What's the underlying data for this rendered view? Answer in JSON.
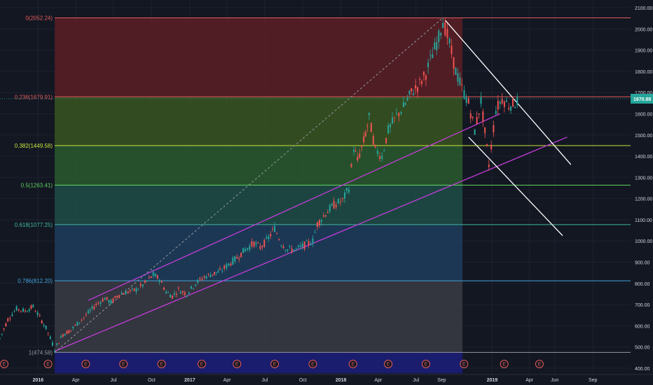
{
  "chart_data": {
    "type": "candlestick",
    "ylim": [
      400,
      2100
    ],
    "y_ticks": [
      400,
      500,
      600,
      700,
      800,
      900,
      1000,
      1100,
      1200,
      1300,
      1400,
      1500,
      1600,
      1700,
      1800,
      1900,
      2000,
      2100
    ],
    "y_tick_labels": [
      "400.00",
      "500.00",
      "600.00",
      "700.00",
      "800.00",
      "900.00",
      "1000.00",
      "1100.00",
      "1200.00",
      "1300.00",
      "1400.00",
      "1500.00",
      "1600.00",
      "1700.00",
      "1800.00",
      "1900.00",
      "2000.00",
      "2100.00"
    ],
    "x_range": [
      "2015-10-01",
      "2019-12-01"
    ],
    "x_ticks": [
      {
        "date": "2016-01-01",
        "label": "2016",
        "bold": true
      },
      {
        "date": "2016-04-01",
        "label": "Apr",
        "bold": false
      },
      {
        "date": "2016-07-01",
        "label": "Jul",
        "bold": false
      },
      {
        "date": "2016-10-01",
        "label": "Oct",
        "bold": false
      },
      {
        "date": "2017-01-01",
        "label": "2017",
        "bold": true
      },
      {
        "date": "2017-04-01",
        "label": "Apr",
        "bold": false
      },
      {
        "date": "2017-07-01",
        "label": "Jul",
        "bold": false
      },
      {
        "date": "2017-10-01",
        "label": "Oct",
        "bold": false
      },
      {
        "date": "2018-01-01",
        "label": "2018",
        "bold": true
      },
      {
        "date": "2018-04-01",
        "label": "Apr",
        "bold": false
      },
      {
        "date": "2018-07-01",
        "label": "Jul",
        "bold": false
      },
      {
        "date": "2018-09-01",
        "label": "Sep",
        "bold": false
      },
      {
        "date": "2019-01-01",
        "label": "2019",
        "bold": true
      },
      {
        "date": "2019-04-01",
        "label": "Apr",
        "bold": false
      },
      {
        "date": "2019-06-01",
        "label": "Jun",
        "bold": false
      },
      {
        "date": "2019-09-01",
        "label": "Sep",
        "bold": false
      }
    ],
    "current_price": {
      "value": 1670.88,
      "label": "1670.88",
      "color": "#26a69a"
    },
    "fibonacci": {
      "start_date": "2016-02-10",
      "end_date": "2018-09-04",
      "levels": [
        {
          "ratio_label": "0(2052.24)",
          "price": 2052.24,
          "color": "#e35b5b",
          "zone": "#5c1e26"
        },
        {
          "ratio_label": "0.236(1679.91)",
          "price": 1679.91,
          "color": "#e35b5b",
          "zone": "#3a5520"
        },
        {
          "ratio_label": "0.382(1449.58)",
          "price": 1449.58,
          "color": "#c8e63c",
          "zone": "#2a5a2e"
        },
        {
          "ratio_label": "0.5(1263.41)",
          "price": 1263.41,
          "color": "#5fd25f",
          "zone": "#1f4e46"
        },
        {
          "ratio_label": "0.618(1077.25)",
          "price": 1077.25,
          "color": "#3fb8a0",
          "zone": "#1e3d5c"
        },
        {
          "ratio_label": "0.786(812.20)",
          "price": 812.2,
          "color": "#3fa4d8",
          "zone": "#3a3b44"
        },
        {
          "ratio_label": "1(474.58)",
          "price": 474.58,
          "color": "#9598a1",
          "zone": "#1c1f7a"
        }
      ]
    },
    "series": [
      {
        "type": "candlestick",
        "points": [
          [
            "2015-10-01",
            540
          ],
          [
            "2015-10-20",
            630
          ],
          [
            "2015-11-10",
            680
          ],
          [
            "2015-12-01",
            670
          ],
          [
            "2015-12-20",
            690
          ],
          [
            "2016-01-05",
            640
          ],
          [
            "2016-01-20",
            590
          ],
          [
            "2016-02-10",
            490
          ],
          [
            "2016-03-01",
            560
          ],
          [
            "2016-03-20",
            580
          ],
          [
            "2016-04-10",
            620
          ],
          [
            "2016-05-01",
            660
          ],
          [
            "2016-05-20",
            700
          ],
          [
            "2016-06-10",
            730
          ],
          [
            "2016-06-25",
            710
          ],
          [
            "2016-07-15",
            750
          ],
          [
            "2016-08-05",
            760
          ],
          [
            "2016-08-25",
            770
          ],
          [
            "2016-09-15",
            800
          ],
          [
            "2016-10-05",
            840
          ],
          [
            "2016-10-20",
            820
          ],
          [
            "2016-11-05",
            760
          ],
          [
            "2016-11-20",
            740
          ],
          [
            "2016-12-05",
            770
          ],
          [
            "2016-12-25",
            750
          ],
          [
            "2017-01-15",
            800
          ],
          [
            "2017-02-05",
            830
          ],
          [
            "2017-02-25",
            845
          ],
          [
            "2017-03-15",
            855
          ],
          [
            "2017-04-05",
            890
          ],
          [
            "2017-04-25",
            920
          ],
          [
            "2017-05-15",
            960
          ],
          [
            "2017-06-05",
            990
          ],
          [
            "2017-06-20",
            970
          ],
          [
            "2017-07-05",
            1000
          ],
          [
            "2017-07-25",
            1060
          ],
          [
            "2017-08-10",
            990
          ],
          [
            "2017-08-25",
            960
          ],
          [
            "2017-09-15",
            960
          ],
          [
            "2017-10-05",
            980
          ],
          [
            "2017-10-25",
            1000
          ],
          [
            "2017-11-05",
            1080
          ],
          [
            "2017-11-25",
            1130
          ],
          [
            "2017-12-15",
            1170
          ],
          [
            "2018-01-05",
            1190
          ],
          [
            "2018-01-20",
            1250
          ],
          [
            "2018-02-01",
            1440
          ],
          [
            "2018-02-10",
            1380
          ],
          [
            "2018-02-25",
            1470
          ],
          [
            "2018-03-10",
            1580
          ],
          [
            "2018-03-25",
            1430
          ],
          [
            "2018-04-10",
            1400
          ],
          [
            "2018-04-25",
            1520
          ],
          [
            "2018-05-15",
            1590
          ],
          [
            "2018-06-01",
            1630
          ],
          [
            "2018-06-20",
            1700
          ],
          [
            "2018-07-10",
            1740
          ],
          [
            "2018-07-25",
            1790
          ],
          [
            "2018-08-10",
            1880
          ],
          [
            "2018-08-25",
            1960
          ],
          [
            "2018-09-04",
            2040
          ],
          [
            "2018-09-20",
            1930
          ],
          [
            "2018-10-05",
            1800
          ],
          [
            "2018-10-20",
            1720
          ],
          [
            "2018-11-05",
            1650
          ],
          [
            "2018-11-20",
            1520
          ],
          [
            "2018-12-05",
            1660
          ],
          [
            "2018-12-24",
            1360
          ],
          [
            "2019-01-10",
            1620
          ],
          [
            "2019-01-25",
            1670
          ],
          [
            "2019-02-10",
            1640
          ],
          [
            "2019-02-25",
            1650
          ],
          [
            "2019-03-08",
            1670.88
          ]
        ]
      }
    ],
    "drawings": [
      {
        "type": "parallel_channel",
        "color": "#c13cd8",
        "line1": [
          [
            "2016-02-10",
            480
          ],
          [
            "2019-07-01",
            1490
          ]
        ],
        "line2": [
          [
            "2016-05-01",
            720
          ],
          [
            "2019-01-20",
            1600
          ]
        ]
      },
      {
        "type": "trend_channel",
        "color": "#ffffff",
        "line1": [
          [
            "2018-09-10",
            2040
          ],
          [
            "2019-07-10",
            1360
          ]
        ],
        "line2": [
          [
            "2018-11-05",
            1490
          ],
          [
            "2019-06-20",
            1025
          ]
        ]
      },
      {
        "type": "dashed_trend",
        "color": "#9598a1",
        "from": [
          "2016-02-10",
          474.58
        ],
        "to": [
          "2018-09-04",
          2052.24
        ]
      }
    ],
    "events": {
      "label": "E",
      "dates": [
        "2015-10-01",
        "2016-01-25",
        "2016-04-25",
        "2016-07-25",
        "2016-10-25",
        "2017-01-30",
        "2017-04-25",
        "2017-07-25",
        "2017-10-25",
        "2018-01-30",
        "2018-04-25",
        "2018-07-25",
        "2018-10-25",
        "2019-01-30",
        "2019-04-25"
      ]
    }
  }
}
